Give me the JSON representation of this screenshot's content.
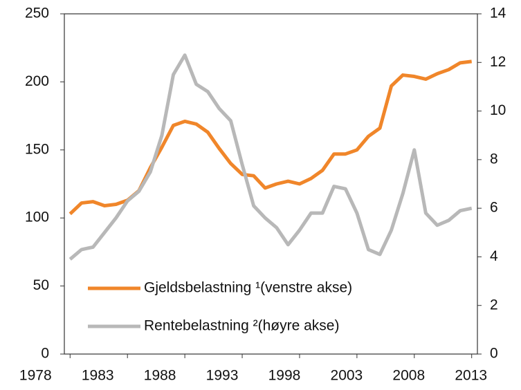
{
  "chart_data": {
    "type": "line",
    "x": [
      1978,
      1979,
      1980,
      1981,
      1982,
      1983,
      1984,
      1985,
      1986,
      1987,
      1988,
      1989,
      1990,
      1991,
      1992,
      1993,
      1994,
      1995,
      1996,
      1997,
      1998,
      1999,
      2000,
      2001,
      2002,
      2003,
      2004,
      2005,
      2006,
      2007,
      2008,
      2009,
      2010,
      2011,
      2012,
      2013
    ],
    "series": [
      {
        "name": "Gjeldsbelastning ¹(venstre akse)",
        "color": "#f0862a",
        "axis": "y",
        "values": [
          103,
          111,
          112,
          109,
          110,
          113,
          120,
          137,
          152,
          168,
          171,
          169,
          163,
          151,
          140,
          132,
          131,
          122,
          125,
          127,
          125,
          129,
          135,
          147,
          147,
          150,
          160,
          166,
          197,
          205,
          204,
          202,
          206,
          209,
          214,
          215
        ]
      },
      {
        "name": "Rentebelastning ²(høyre akse)",
        "color": "#b8b8b8",
        "axis": "y2",
        "values": [
          3.9,
          4.3,
          4.4,
          5.0,
          5.6,
          6.3,
          6.7,
          7.5,
          9.0,
          11.5,
          12.3,
          11.1,
          10.8,
          10.1,
          9.6,
          7.8,
          6.1,
          5.6,
          5.2,
          4.5,
          5.1,
          5.8,
          5.8,
          6.9,
          6.8,
          5.8,
          4.3,
          4.1,
          5.1,
          6.6,
          8.4,
          5.8,
          5.3,
          5.5,
          5.9,
          6.0
        ]
      }
    ],
    "xlim": [
      1977.5,
      2013.5
    ],
    "xticks": [
      1978,
      1983,
      1988,
      1993,
      1998,
      2003,
      2008,
      2013
    ],
    "ylim": [
      0,
      250
    ],
    "yticks": [
      0,
      50,
      100,
      150,
      200,
      250
    ],
    "y2lim": [
      0,
      14
    ],
    "y2ticks": [
      0,
      2,
      4,
      6,
      8,
      10,
      12,
      14
    ]
  }
}
